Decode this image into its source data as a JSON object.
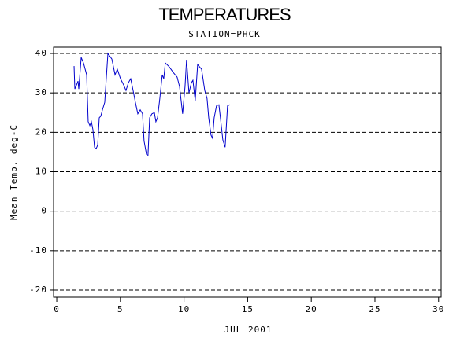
{
  "chart_data": {
    "type": "line",
    "title": "TEMPERATURES",
    "subtitle": "STATION=PHCK",
    "x_label": "JUL 2001",
    "y_label": "Mean Temp. deg-C",
    "xlim": [
      -0.25,
      30.2
    ],
    "xticks": [
      0,
      5,
      10,
      15,
      20,
      25,
      30
    ],
    "ylim": [
      -21.8,
      41.6
    ],
    "yticks": [
      -20,
      -10,
      0,
      10,
      20,
      30,
      40
    ],
    "grid": true,
    "grid_style": "dashed",
    "x": [
      1.36,
      1.42,
      1.55,
      1.67,
      1.73,
      1.92,
      2.1,
      2.35,
      2.47,
      2.6,
      2.72,
      2.84,
      2.97,
      3.09,
      3.22,
      3.34,
      3.46,
      3.59,
      3.77,
      4.02,
      4.33,
      4.58,
      4.76,
      5.01,
      5.26,
      5.44,
      5.63,
      5.81,
      6.0,
      6.18,
      6.37,
      6.56,
      6.74,
      6.86,
      7.05,
      7.17,
      7.3,
      7.48,
      7.67,
      7.79,
      7.92,
      8.1,
      8.29,
      8.41,
      8.53,
      8.84,
      9.15,
      9.46,
      9.65,
      9.89,
      10.08,
      10.2,
      10.39,
      10.58,
      10.7,
      10.88,
      11.07,
      11.38,
      11.63,
      11.81,
      11.94,
      12.12,
      12.24,
      12.37,
      12.55,
      12.74,
      12.86,
      13.05,
      13.23,
      13.42,
      13.61
    ],
    "series": [
      {
        "name": "Mean Temp",
        "color": "#0000cc",
        "values": [
          36.8,
          31,
          32,
          33,
          31,
          39,
          37.6,
          34.6,
          22.7,
          21.7,
          22.7,
          20.7,
          16.2,
          15.8,
          16.8,
          23.7,
          24.1,
          25.7,
          27.6,
          40,
          38.6,
          34.6,
          36,
          33.6,
          32,
          30.6,
          32.6,
          33.6,
          30.6,
          27.6,
          24.7,
          25.7,
          24.7,
          17.8,
          14.4,
          14.2,
          23.7,
          24.7,
          25,
          22.7,
          23.7,
          28.6,
          34.6,
          33.6,
          37.6,
          36.6,
          35.2,
          34,
          31.6,
          24.7,
          31.6,
          38.4,
          30,
          32.6,
          33.2,
          28,
          37.2,
          36,
          30.6,
          28.6,
          23.7,
          19.3,
          18.5,
          23.7,
          26.7,
          27,
          23.7,
          18.1,
          16.2,
          26.7,
          27
        ]
      }
    ]
  }
}
